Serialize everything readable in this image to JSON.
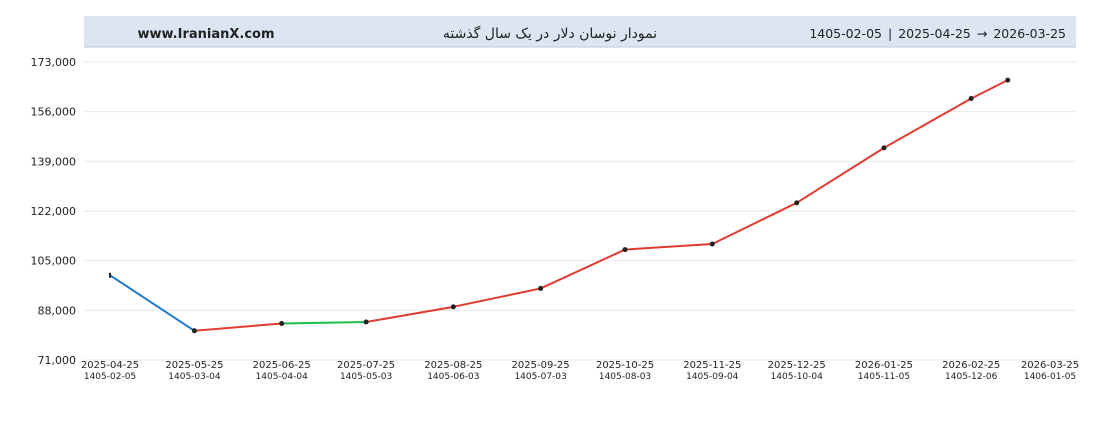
{
  "header": {
    "site": "www.IranianX.com",
    "title": "نمودار نوسان دلار در یک سال گذشته",
    "range_start_jalali": "1405-02-05",
    "separator": "|",
    "range_start": "2025-04-25",
    "arrow": "→",
    "range_end": "2026-03-25"
  },
  "colors": {
    "header_bg": "#dce6f2",
    "header_border": "#c0cad6",
    "grid": "#e9e9e9",
    "up": "#e03c31",
    "flat": "#1fbf46",
    "down": "#1f78c8",
    "point": "#222222"
  },
  "chart_data": {
    "type": "line",
    "ylim": [
      71000,
      173000
    ],
    "yticks": [
      71000,
      88000,
      105000,
      122000,
      139000,
      156000,
      173000
    ],
    "ytick_labels": [
      "71,000",
      "88,000",
      "105,000",
      "122,000",
      "139,000",
      "156,000",
      "173,000"
    ],
    "xlim": [
      "2025-04-25",
      "2026-03-25"
    ],
    "xticks": [
      "2025-04-25",
      "2025-05-25",
      "2025-06-25",
      "2025-07-25",
      "2025-08-25",
      "2025-09-25",
      "2025-10-25",
      "2025-11-25",
      "2025-12-25",
      "2026-01-25",
      "2026-02-25",
      "2026-03-25"
    ],
    "xticks_jalali": [
      "1405-02-05",
      "1405-03-04",
      "1405-04-04",
      "1405-05-03",
      "1405-06-03",
      "1405-07-03",
      "1405-08-03",
      "1405-09-04",
      "1405-10-04",
      "1405-11-05",
      "1405-12-06",
      "1406-01-05"
    ],
    "grid": true,
    "points": [
      {
        "x": "2025-04-25",
        "y": 100000
      },
      {
        "x": "2025-05-25",
        "y": 81000
      },
      {
        "x": "2025-06-25",
        "y": 83500
      },
      {
        "x": "2025-07-25",
        "y": 84000
      },
      {
        "x": "2025-08-25",
        "y": 89200
      },
      {
        "x": "2025-09-25",
        "y": 95500
      },
      {
        "x": "2025-10-25",
        "y": 108800
      },
      {
        "x": "2025-11-25",
        "y": 110700
      },
      {
        "x": "2025-12-25",
        "y": 124800
      },
      {
        "x": "2026-01-25",
        "y": 143600
      },
      {
        "x": "2026-02-25",
        "y": 160500
      },
      {
        "x": "2026-03-10",
        "y": 166800
      }
    ]
  }
}
